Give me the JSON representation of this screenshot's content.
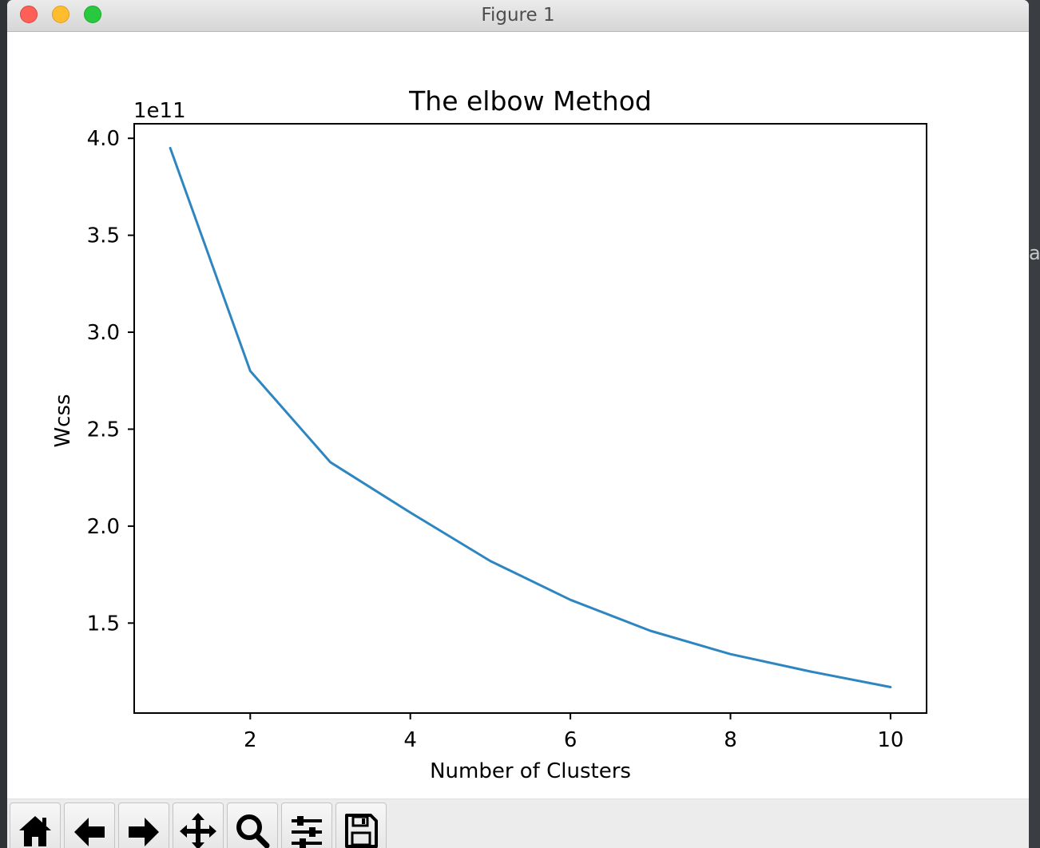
{
  "window": {
    "title": "Figure 1"
  },
  "background_fragments": [
    "a"
  ],
  "toolbar": {
    "buttons": [
      {
        "name": "home-button",
        "icon": "home-icon"
      },
      {
        "name": "back-button",
        "icon": "arrow-left-icon"
      },
      {
        "name": "forward-button",
        "icon": "arrow-right-icon"
      },
      {
        "name": "pan-button",
        "icon": "move-icon"
      },
      {
        "name": "zoom-button",
        "icon": "magnifier-icon"
      },
      {
        "name": "configure-subplots-button",
        "icon": "sliders-icon"
      },
      {
        "name": "save-button",
        "icon": "floppy-disk-icon"
      }
    ]
  },
  "chart_data": {
    "type": "line",
    "title": "The elbow Method",
    "xlabel": "Number of Clusters",
    "ylabel": "Wcss",
    "y_offset_label": "1e11",
    "y_scale_factor": 100000000000,
    "x": [
      1,
      2,
      3,
      4,
      5,
      6,
      7,
      8,
      9,
      10
    ],
    "series": [
      {
        "values": [
          395000000000.0,
          280000000000.0,
          233000000000.0,
          207000000000.0,
          182000000000.0,
          162000000000.0,
          146000000000.0,
          134000000000.0,
          125000000000.0,
          117000000000.0
        ],
        "color": "#2e86c1"
      }
    ],
    "xlim": [
      0.55,
      10.45
    ],
    "ylim": [
      103600000000.0,
      407500000000.0
    ],
    "x_ticks": [
      2,
      4,
      6,
      8,
      10
    ],
    "x_tick_labels": [
      "2",
      "4",
      "6",
      "8",
      "10"
    ],
    "y_ticks": [
      1.5,
      2.0,
      2.5,
      3.0,
      3.5,
      4.0
    ],
    "y_tick_labels": [
      "1.5",
      "2.0",
      "2.5",
      "3.0",
      "3.5",
      "4.0"
    ],
    "grid": false,
    "legend": "none"
  }
}
